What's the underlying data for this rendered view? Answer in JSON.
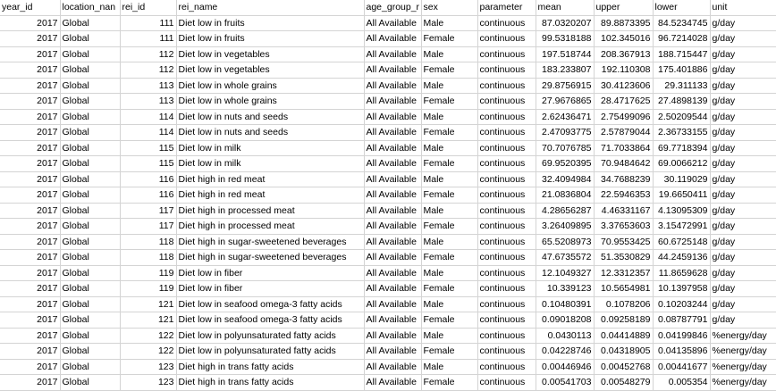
{
  "columns": [
    "year_id",
    "location_nan",
    "rei_id",
    "rei_name",
    "age_group_r",
    "sex",
    "parameter",
    "mean",
    "upper",
    "lower",
    "unit"
  ],
  "rows": [
    [
      "2017",
      "Global",
      "111",
      "Diet low in fruits",
      "All Available",
      "Male",
      "continuous",
      "87.0320207",
      "89.8873395",
      "84.5234745",
      "g/day"
    ],
    [
      "2017",
      "Global",
      "111",
      "Diet low in fruits",
      "All Available",
      "Female",
      "continuous",
      "99.5318188",
      "102.345016",
      "96.7214028",
      "g/day"
    ],
    [
      "2017",
      "Global",
      "112",
      "Diet low in vegetables",
      "All Available",
      "Male",
      "continuous",
      "197.518744",
      "208.367913",
      "188.715447",
      "g/day"
    ],
    [
      "2017",
      "Global",
      "112",
      "Diet low in vegetables",
      "All Available",
      "Female",
      "continuous",
      "183.233807",
      "192.110308",
      "175.401886",
      "g/day"
    ],
    [
      "2017",
      "Global",
      "113",
      "Diet low in whole grains",
      "All Available",
      "Male",
      "continuous",
      "29.8756915",
      "30.4123606",
      "29.311133",
      "g/day"
    ],
    [
      "2017",
      "Global",
      "113",
      "Diet low in whole grains",
      "All Available",
      "Female",
      "continuous",
      "27.9676865",
      "28.4717625",
      "27.4898139",
      "g/day"
    ],
    [
      "2017",
      "Global",
      "114",
      "Diet low in nuts and seeds",
      "All Available",
      "Male",
      "continuous",
      "2.62436471",
      "2.75499096",
      "2.50209544",
      "g/day"
    ],
    [
      "2017",
      "Global",
      "114",
      "Diet low in nuts and seeds",
      "All Available",
      "Female",
      "continuous",
      "2.47093775",
      "2.57879044",
      "2.36733155",
      "g/day"
    ],
    [
      "2017",
      "Global",
      "115",
      "Diet low in milk",
      "All Available",
      "Male",
      "continuous",
      "70.7076785",
      "71.7033864",
      "69.7718394",
      "g/day"
    ],
    [
      "2017",
      "Global",
      "115",
      "Diet low in milk",
      "All Available",
      "Female",
      "continuous",
      "69.9520395",
      "70.9484642",
      "69.0066212",
      "g/day"
    ],
    [
      "2017",
      "Global",
      "116",
      "Diet high in red meat",
      "All Available",
      "Male",
      "continuous",
      "32.4094984",
      "34.7688239",
      "30.119029",
      "g/day"
    ],
    [
      "2017",
      "Global",
      "116",
      "Diet high in red meat",
      "All Available",
      "Female",
      "continuous",
      "21.0836804",
      "22.5946353",
      "19.6650411",
      "g/day"
    ],
    [
      "2017",
      "Global",
      "117",
      "Diet high in processed meat",
      "All Available",
      "Male",
      "continuous",
      "4.28656287",
      "4.46331167",
      "4.13095309",
      "g/day"
    ],
    [
      "2017",
      "Global",
      "117",
      "Diet high in processed meat",
      "All Available",
      "Female",
      "continuous",
      "3.26409895",
      "3.37653603",
      "3.15472991",
      "g/day"
    ],
    [
      "2017",
      "Global",
      "118",
      "Diet high in sugar-sweetened beverages",
      "All Available",
      "Male",
      "continuous",
      "65.5208973",
      "70.9553425",
      "60.6725148",
      "g/day"
    ],
    [
      "2017",
      "Global",
      "118",
      "Diet high in sugar-sweetened beverages",
      "All Available",
      "Female",
      "continuous",
      "47.6735572",
      "51.3530829",
      "44.2459136",
      "g/day"
    ],
    [
      "2017",
      "Global",
      "119",
      "Diet low in fiber",
      "All Available",
      "Male",
      "continuous",
      "12.1049327",
      "12.3312357",
      "11.8659628",
      "g/day"
    ],
    [
      "2017",
      "Global",
      "119",
      "Diet low in fiber",
      "All Available",
      "Female",
      "continuous",
      "10.339123",
      "10.5654981",
      "10.1397958",
      "g/day"
    ],
    [
      "2017",
      "Global",
      "121",
      "Diet low in seafood omega-3 fatty acids",
      "All Available",
      "Male",
      "continuous",
      "0.10480391",
      "0.1078206",
      "0.10203244",
      "g/day"
    ],
    [
      "2017",
      "Global",
      "121",
      "Diet low in seafood omega-3 fatty acids",
      "All Available",
      "Female",
      "continuous",
      "0.09018208",
      "0.09258189",
      "0.08787791",
      "g/day"
    ],
    [
      "2017",
      "Global",
      "122",
      "Diet low in polyunsaturated fatty acids",
      "All Available",
      "Male",
      "continuous",
      "0.0430113",
      "0.04414889",
      "0.04199846",
      "%energy/day"
    ],
    [
      "2017",
      "Global",
      "122",
      "Diet low in polyunsaturated fatty acids",
      "All Available",
      "Female",
      "continuous",
      "0.04228746",
      "0.04318905",
      "0.04135896",
      "%energy/day"
    ],
    [
      "2017",
      "Global",
      "123",
      "Diet high in trans fatty acids",
      "All Available",
      "Male",
      "continuous",
      "0.00446946",
      "0.00452768",
      "0.00441677",
      "%energy/day"
    ],
    [
      "2017",
      "Global",
      "123",
      "Diet high in trans fatty acids",
      "All Available",
      "Female",
      "continuous",
      "0.00541703",
      "0.00548279",
      "0.005354",
      "%energy/day"
    ]
  ]
}
